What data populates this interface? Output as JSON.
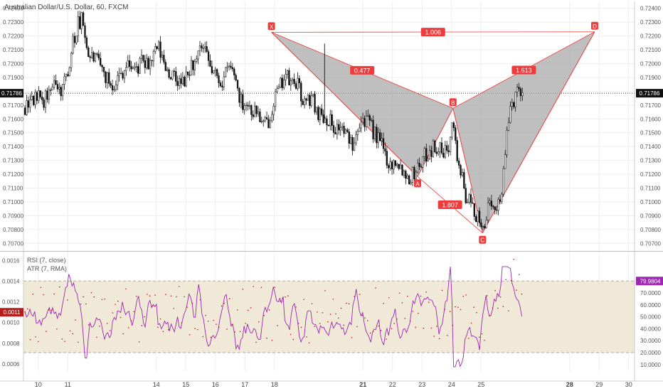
{
  "chart_data": {
    "type": "candlestick",
    "title": "Australian Dollar/U.S. Dollar, 60, FXCM",
    "price_axis": {
      "ylim": [
        0.7065,
        0.7245
      ],
      "ticks": [
        "0.72400",
        "0.72300",
        "0.72200",
        "0.72100",
        "0.72000",
        "0.71900",
        "0.71800",
        "0.71700",
        "0.71600",
        "0.71500",
        "0.71400",
        "0.71300",
        "0.71200",
        "0.71100",
        "0.71000",
        "0.70900",
        "0.70800",
        "0.70700"
      ],
      "current_price_label": "0.71786",
      "current_price": 0.71786
    },
    "x_axis": {
      "xlim": [
        9.5,
        30.2
      ],
      "ticks": [
        {
          "v": 10,
          "label": "10",
          "bold": false
        },
        {
          "v": 11,
          "label": "11",
          "bold": false
        },
        {
          "v": 14,
          "label": "14",
          "bold": false
        },
        {
          "v": 15,
          "label": "15",
          "bold": false
        },
        {
          "v": 16,
          "label": "16",
          "bold": false
        },
        {
          "v": 17,
          "label": "17",
          "bold": false
        },
        {
          "v": 18,
          "label": "18",
          "bold": false
        },
        {
          "v": 21,
          "label": "21",
          "bold": true
        },
        {
          "v": 22,
          "label": "22",
          "bold": false
        },
        {
          "v": 23,
          "label": "23",
          "bold": false
        },
        {
          "v": 24,
          "label": "24",
          "bold": false
        },
        {
          "v": 25,
          "label": "25",
          "bold": false
        },
        {
          "v": 28,
          "label": "28",
          "bold": true
        },
        {
          "v": 29,
          "label": "29",
          "bold": false
        },
        {
          "v": 30,
          "label": "30",
          "bold": false
        }
      ]
    },
    "close_path": [
      [
        9.55,
        0.7168
      ],
      [
        9.9,
        0.7176
      ],
      [
        10.2,
        0.7173
      ],
      [
        10.5,
        0.7182
      ],
      [
        10.8,
        0.7181
      ],
      [
        11.0,
        0.7196
      ],
      [
        11.15,
        0.7212
      ],
      [
        11.35,
        0.7228
      ],
      [
        11.5,
        0.7232
      ],
      [
        11.7,
        0.7206
      ],
      [
        11.9,
        0.7204
      ],
      [
        12.1,
        0.7198
      ],
      [
        12.3,
        0.719
      ],
      [
        12.5,
        0.7185
      ],
      [
        12.7,
        0.719
      ],
      [
        12.9,
        0.7196
      ],
      [
        13.1,
        0.72
      ],
      [
        13.3,
        0.7195
      ],
      [
        13.5,
        0.7201
      ],
      [
        13.7,
        0.7198
      ],
      [
        13.9,
        0.7205
      ],
      [
        14.05,
        0.7212
      ],
      [
        14.25,
        0.7201
      ],
      [
        14.45,
        0.7193
      ],
      [
        14.65,
        0.7188
      ],
      [
        14.85,
        0.7185
      ],
      [
        15.05,
        0.719
      ],
      [
        15.2,
        0.72
      ],
      [
        15.35,
        0.7198
      ],
      [
        15.5,
        0.7212
      ],
      [
        15.65,
        0.7207
      ],
      [
        15.85,
        0.7196
      ],
      [
        16.05,
        0.719
      ],
      [
        16.25,
        0.7187
      ],
      [
        16.45,
        0.7198
      ],
      [
        16.65,
        0.7193
      ],
      [
        16.85,
        0.7173
      ],
      [
        17.05,
        0.7172
      ],
      [
        17.25,
        0.7166
      ],
      [
        17.45,
        0.7165
      ],
      [
        17.6,
        0.7154
      ],
      [
        17.8,
        0.7159
      ],
      [
        18.0,
        0.7176
      ],
      [
        18.15,
        0.718
      ],
      [
        18.35,
        0.7193
      ],
      [
        18.55,
        0.7185
      ],
      [
        18.75,
        0.7187
      ],
      [
        18.9,
        0.7177
      ],
      [
        19.05,
        0.717
      ],
      [
        19.25,
        0.7176
      ],
      [
        19.45,
        0.7166
      ],
      [
        19.65,
        0.7162
      ],
      [
        19.85,
        0.716
      ],
      [
        20.05,
        0.7153
      ],
      [
        20.25,
        0.7155
      ],
      [
        20.45,
        0.7147
      ],
      [
        20.65,
        0.7143
      ],
      [
        20.85,
        0.7159
      ],
      [
        21.05,
        0.716
      ],
      [
        21.25,
        0.7155
      ],
      [
        21.45,
        0.7147
      ],
      [
        21.6,
        0.7143
      ],
      [
        21.8,
        0.7132
      ],
      [
        21.95,
        0.7126
      ],
      [
        22.15,
        0.7131
      ],
      [
        22.35,
        0.7123
      ],
      [
        22.55,
        0.7118
      ],
      [
        22.7,
        0.712
      ],
      [
        22.85,
        0.7126
      ],
      [
        23.0,
        0.713
      ],
      [
        23.2,
        0.7136
      ],
      [
        23.35,
        0.7139
      ],
      [
        23.55,
        0.714
      ],
      [
        23.7,
        0.7133
      ],
      [
        23.9,
        0.7141
      ],
      [
        24.0,
        0.716
      ],
      [
        24.05,
        0.7167
      ],
      [
        24.15,
        0.7136
      ],
      [
        24.3,
        0.7123
      ],
      [
        24.45,
        0.7106
      ],
      [
        24.6,
        0.71
      ],
      [
        24.75,
        0.7095
      ],
      [
        24.9,
        0.7087
      ],
      [
        25.0,
        0.7079
      ],
      [
        25.1,
        0.7085
      ],
      [
        25.25,
        0.7096
      ],
      [
        25.4,
        0.7092
      ],
      [
        25.55,
        0.7099
      ],
      [
        25.7,
        0.7108
      ],
      [
        25.85,
        0.714
      ],
      [
        25.95,
        0.7164
      ],
      [
        26.05,
        0.7172
      ],
      [
        26.15,
        0.7176
      ],
      [
        26.3,
        0.7183
      ],
      [
        26.4,
        0.7181
      ]
    ],
    "harmonic_pattern": {
      "points": [
        {
          "label": "X",
          "x": 17.9,
          "y": 0.72227
        },
        {
          "label": "A",
          "x": 22.85,
          "y": 0.71183
        },
        {
          "label": "B",
          "x": 24.05,
          "y": 0.71677
        },
        {
          "label": "C",
          "x": 25.05,
          "y": 0.70775
        },
        {
          "label": "D",
          "x": 28.85,
          "y": 0.7223
        }
      ],
      "ratios": [
        {
          "label": "1.006",
          "between": [
            "X",
            "D"
          ]
        },
        {
          "label": "0.477",
          "between": [
            "X",
            "B"
          ]
        },
        {
          "label": "1.613",
          "between": [
            "B",
            "D"
          ]
        },
        {
          "label": "1.807",
          "between": [
            "A",
            "C"
          ]
        }
      ],
      "fill_color": "#a9a9a9",
      "line_color": "#ee3b3b"
    },
    "indicator_pane": {
      "legend": [
        "RSI (7, close)",
        "ATR (7, RMA)"
      ],
      "left_axis": {
        "ylim": [
          0.00053,
          0.00168
        ],
        "ticks": [
          "0.0016",
          "0.0014",
          "0.0012",
          "0.0010",
          "0.0008",
          "0.0006"
        ]
      },
      "right_axis": {
        "ylim": [
          4.5,
          104
        ],
        "ticks": [
          "80.0000",
          "70.0000",
          "60.0000",
          "50.0000",
          "40.0000",
          "30.0000",
          "20.0000",
          "10.0000"
        ]
      },
      "rsi_band": [
        20,
        80
      ],
      "rsi_label": "79.9804",
      "atr_label": "0.0011",
      "rsi_color": "#9c27b0",
      "atr_color": "#b71c1c",
      "band_color": "#f0e9d8"
    }
  }
}
